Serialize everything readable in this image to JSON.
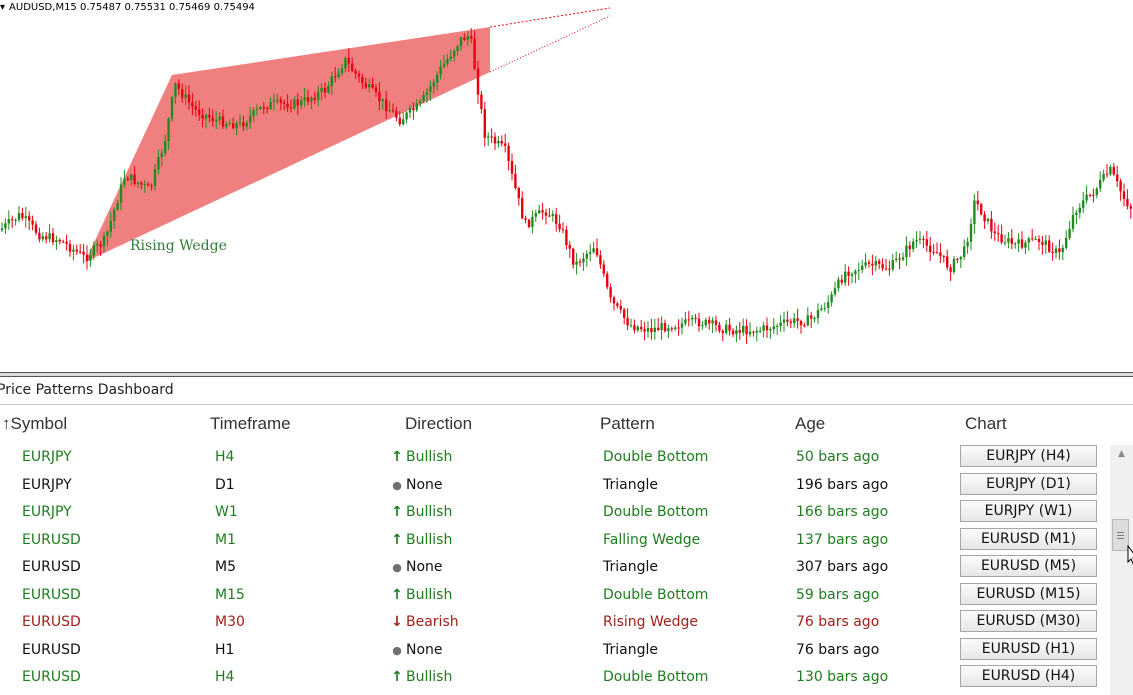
{
  "chart": {
    "header": "AUDUSD,M15  0.75487 0.75531 0.75469 0.75494",
    "pattern_label": "Rising Wedge",
    "colors": {
      "bull": "#1f8c1f",
      "bear": "#e8000f",
      "wedge_fill": "#f08080"
    }
  },
  "dashboard": {
    "title": "Price Patterns Dashboard",
    "columns": {
      "symbol": "↑Symbol",
      "timeframe": "Timeframe",
      "direction": "Direction",
      "pattern": "Pattern",
      "age": "Age",
      "chart": "Chart"
    },
    "rows": [
      {
        "symbol": "EURJPY",
        "timeframe": "H4",
        "direction": "Bullish",
        "kind": "bullish",
        "pattern": "Double Bottom",
        "age": "50 bars ago",
        "button": "EURJPY (H4)"
      },
      {
        "symbol": "EURJPY",
        "timeframe": "D1",
        "direction": "None",
        "kind": "neutral",
        "pattern": "Triangle",
        "age": "196 bars ago",
        "button": "EURJPY (D1)"
      },
      {
        "symbol": "EURJPY",
        "timeframe": "W1",
        "direction": "Bullish",
        "kind": "bullish",
        "pattern": "Double Bottom",
        "age": "166 bars ago",
        "button": "EURJPY (W1)"
      },
      {
        "symbol": "EURUSD",
        "timeframe": "M1",
        "direction": "Bullish",
        "kind": "bullish",
        "pattern": "Falling Wedge",
        "age": "137 bars ago",
        "button": "EURUSD (M1)"
      },
      {
        "symbol": "EURUSD",
        "timeframe": "M5",
        "direction": "None",
        "kind": "neutral",
        "pattern": "Triangle",
        "age": "307 bars ago",
        "button": "EURUSD (M5)"
      },
      {
        "symbol": "EURUSD",
        "timeframe": "M15",
        "direction": "Bullish",
        "kind": "bullish",
        "pattern": "Double Bottom",
        "age": "59 bars ago",
        "button": "EURUSD (M15)"
      },
      {
        "symbol": "EURUSD",
        "timeframe": "M30",
        "direction": "Bearish",
        "kind": "bearish",
        "pattern": "Rising Wedge",
        "age": "76 bars ago",
        "button": "EURUSD (M30)"
      },
      {
        "symbol": "EURUSD",
        "timeframe": "H1",
        "direction": "None",
        "kind": "neutral",
        "pattern": "Triangle",
        "age": "76 bars ago",
        "button": "EURUSD (H1)"
      },
      {
        "symbol": "EURUSD",
        "timeframe": "H4",
        "direction": "Bullish",
        "kind": "bullish",
        "pattern": "Double Bottom",
        "age": "130 bars ago",
        "button": "EURUSD (H4)"
      }
    ]
  }
}
